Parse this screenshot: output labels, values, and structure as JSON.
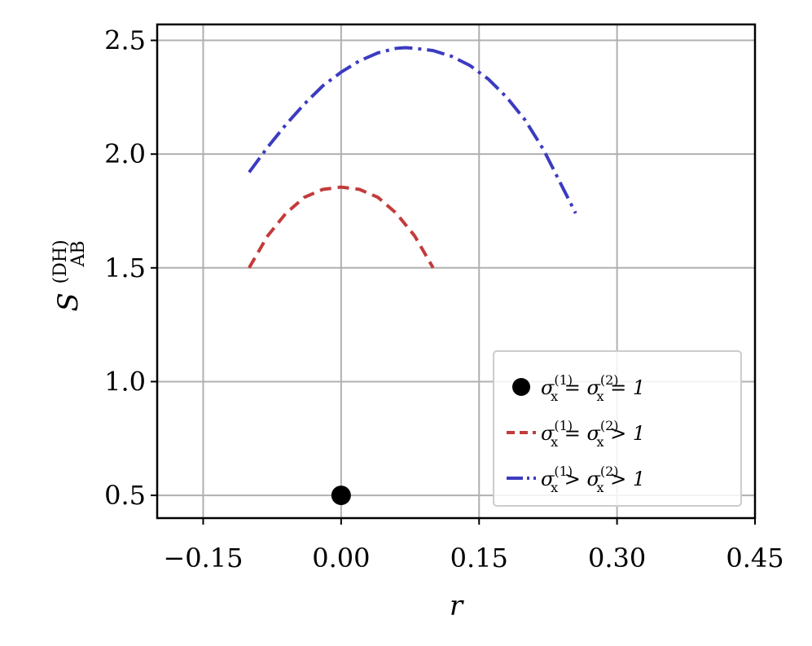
{
  "chart_data": {
    "type": "line",
    "xlabel": "r",
    "ylabel": {
      "base": "S",
      "sup": "(DH)",
      "sub": "AB"
    },
    "xlim": [
      -0.2,
      0.45
    ],
    "ylim": [
      0.4,
      2.57
    ],
    "x_ticks": [
      -0.15,
      0.0,
      0.15,
      0.3,
      0.45
    ],
    "x_tick_labels": [
      "−0.15",
      "0.00",
      "0.15",
      "0.30",
      "0.45"
    ],
    "y_ticks": [
      0.5,
      1.0,
      1.5,
      2.0,
      2.5
    ],
    "y_tick_labels": [
      "0.5",
      "1.0",
      "1.5",
      "2.0",
      "2.5"
    ],
    "grid": true,
    "legend_position": "lower-right",
    "series": [
      {
        "name": "σx(1) = σx(2) = 1",
        "style": "marker",
        "color": "#000000",
        "x": [
          0.0
        ],
        "y": [
          0.5
        ]
      },
      {
        "name": "σx(1) = σx(2) > 1",
        "style": "dashed",
        "color": "#c23b3b",
        "x": [
          -0.1,
          -0.08,
          -0.06,
          -0.04,
          -0.02,
          0.0,
          0.02,
          0.04,
          0.06,
          0.08,
          0.1
        ],
        "y": [
          1.5,
          1.64,
          1.74,
          1.81,
          1.845,
          1.855,
          1.845,
          1.81,
          1.74,
          1.64,
          1.5
        ]
      },
      {
        "name": "σx(1) > σx(2) > 1",
        "style": "dashdot",
        "color": "#3b3bc2",
        "x": [
          -0.1,
          -0.08,
          -0.06,
          -0.04,
          -0.02,
          0.0,
          0.02,
          0.04,
          0.06,
          0.07,
          0.08,
          0.1,
          0.12,
          0.14,
          0.16,
          0.18,
          0.2,
          0.22,
          0.24,
          0.255
        ],
        "y": [
          1.92,
          2.03,
          2.13,
          2.22,
          2.3,
          2.36,
          2.41,
          2.445,
          2.465,
          2.468,
          2.465,
          2.455,
          2.43,
          2.39,
          2.33,
          2.25,
          2.15,
          2.02,
          1.86,
          1.74
        ]
      }
    ],
    "legend": [
      {
        "pre": "σ",
        "sub1": "x",
        "sup1": "(1)",
        "mid": " = σ",
        "sub2": "x",
        "sup2": "(2)",
        "post": " = 1"
      },
      {
        "pre": "σ",
        "sub1": "x",
        "sup1": "(1)",
        "mid": " = σ",
        "sub2": "x",
        "sup2": "(2)",
        "post": " > 1"
      },
      {
        "pre": "σ",
        "sub1": "x",
        "sup1": "(1)",
        "mid": " > σ",
        "sub2": "x",
        "sup2": "(2)",
        "post": " > 1"
      }
    ]
  }
}
